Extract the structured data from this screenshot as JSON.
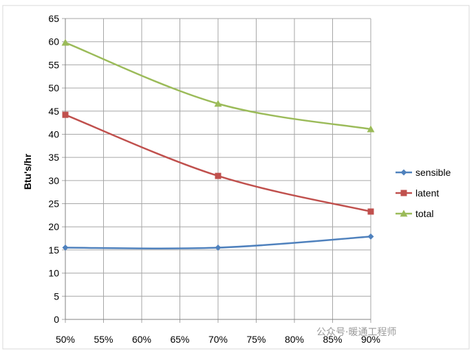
{
  "chart_data": {
    "type": "line",
    "title": "",
    "xlabel": "",
    "ylabel": "Btu's/hr",
    "x": [
      0.5,
      0.7,
      0.9
    ],
    "xlim": [
      0.5,
      0.9
    ],
    "xtick_values": [
      0.5,
      0.55,
      0.6,
      0.65,
      0.7,
      0.75,
      0.8,
      0.85,
      0.9
    ],
    "xticks": [
      "50%",
      "55%",
      "60%",
      "65%",
      "70%",
      "75%",
      "80%",
      "85%",
      "90%"
    ],
    "ylim": [
      0,
      65
    ],
    "yticks": [
      0,
      5,
      10,
      15,
      20,
      25,
      30,
      35,
      40,
      45,
      50,
      55,
      60,
      65
    ],
    "grid": true,
    "legend_position": "right",
    "series": [
      {
        "name": "sensible",
        "values": [
          15.5,
          15.5,
          17.9
        ],
        "color": "#4f81bd",
        "marker": "diamond"
      },
      {
        "name": "latent",
        "values": [
          44.2,
          31.0,
          23.3
        ],
        "color": "#c0504d",
        "marker": "square"
      },
      {
        "name": "total",
        "values": [
          59.8,
          46.6,
          41.1
        ],
        "color": "#9bbb59",
        "marker": "triangle"
      }
    ]
  },
  "watermark": {
    "text": "公众号·暖通工程师"
  }
}
